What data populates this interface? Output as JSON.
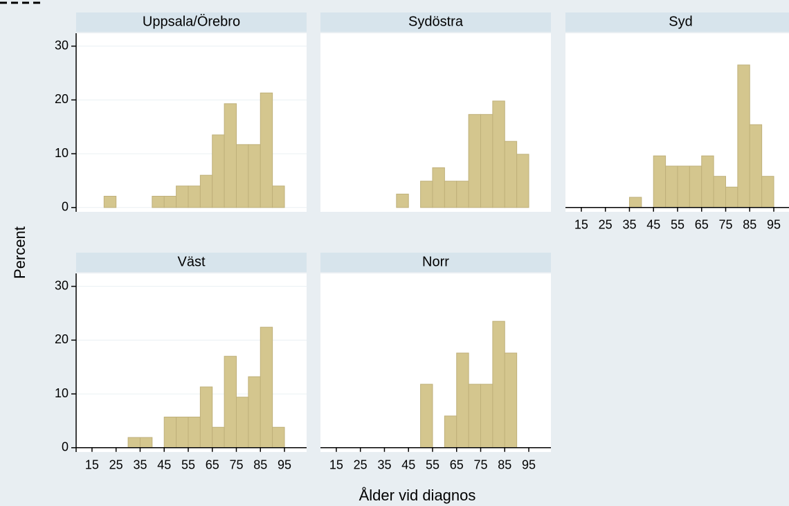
{
  "chart_data": [
    {
      "type": "histogram",
      "title": "Uppsala/Örebro",
      "color": "#d4c68e",
      "grid": true,
      "bins": [
        20,
        25,
        30,
        35,
        40,
        45,
        50,
        55,
        60,
        65,
        70,
        75,
        80,
        85,
        90,
        95
      ],
      "values": [
        2.1,
        0,
        0,
        0,
        2.1,
        2.1,
        4,
        4,
        6,
        13.5,
        19.3,
        11.7,
        11.7,
        21.3,
        4
      ],
      "xlim": [
        8.4,
        104.2
      ],
      "ylim": [
        -0.8,
        32.4
      ],
      "yticks": [
        0,
        10,
        20,
        30
      ]
    },
    {
      "type": "histogram",
      "title": "Sydöstra",
      "color": "#d4c68e",
      "grid": true,
      "bins": [
        20,
        25,
        30,
        35,
        40,
        45,
        50,
        55,
        60,
        65,
        70,
        75,
        80,
        85,
        90,
        95
      ],
      "values": [
        0,
        0,
        0,
        0,
        2.5,
        0,
        4.9,
        7.4,
        4.9,
        4.9,
        17.3,
        17.3,
        19.8,
        12.3,
        9.9
      ],
      "xlim": [
        8.4,
        104.2
      ],
      "ylim": [
        -0.8,
        32.4
      ]
    },
    {
      "type": "histogram",
      "title": "Syd",
      "color": "#d4c68e",
      "grid": true,
      "bins": [
        20,
        25,
        30,
        35,
        40,
        45,
        50,
        55,
        60,
        65,
        70,
        75,
        80,
        85,
        90,
        95
      ],
      "values": [
        0,
        0,
        0,
        1.9,
        0,
        9.6,
        7.7,
        7.7,
        7.7,
        9.6,
        5.8,
        3.8,
        26.5,
        15.4,
        5.8
      ],
      "xlim": [
        8.4,
        104.2
      ],
      "ylim": [
        -0.8,
        32.4
      ],
      "xticks": [
        15,
        25,
        35,
        45,
        55,
        65,
        75,
        85,
        95
      ]
    },
    {
      "type": "histogram",
      "title": "Väst",
      "color": "#d4c68e",
      "grid": true,
      "bins": [
        20,
        25,
        30,
        35,
        40,
        45,
        50,
        55,
        60,
        65,
        70,
        75,
        80,
        85,
        90,
        95
      ],
      "values": [
        0,
        0,
        1.9,
        1.9,
        0,
        5.7,
        5.7,
        5.7,
        11.3,
        3.8,
        17,
        9.4,
        13.2,
        22.4,
        3.8
      ],
      "xlim": [
        8.4,
        104.2
      ],
      "ylim": [
        -0.8,
        32.4
      ],
      "yticks": [
        0,
        10,
        20,
        30
      ],
      "xticks": [
        15,
        25,
        35,
        45,
        55,
        65,
        75,
        85,
        95
      ]
    },
    {
      "type": "histogram",
      "title": "Norr",
      "color": "#d4c68e",
      "grid": true,
      "bins": [
        20,
        25,
        30,
        35,
        40,
        45,
        50,
        55,
        60,
        65,
        70,
        75,
        80,
        85,
        90,
        95
      ],
      "values": [
        0,
        0,
        0,
        0,
        0,
        0,
        11.8,
        0,
        5.9,
        17.6,
        11.8,
        11.8,
        23.5,
        17.6,
        0
      ],
      "xlim": [
        8.4,
        104.2
      ],
      "ylim": [
        -0.8,
        32.4
      ],
      "xticks": [
        15,
        25,
        35,
        45,
        55,
        65,
        75,
        85,
        95
      ]
    }
  ],
  "y_label": "Percent",
  "x_label": "Ålder vid diagnos"
}
